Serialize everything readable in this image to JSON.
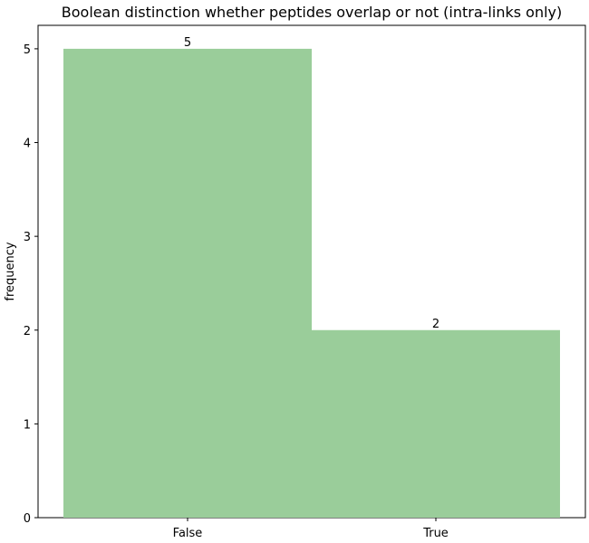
{
  "chart_data": {
    "type": "bar",
    "title": "Boolean distinction whether peptides overlap or not (intra-links only)",
    "xlabel": "",
    "ylabel": "frequency",
    "categories": [
      "False",
      "True"
    ],
    "values": [
      5,
      2
    ],
    "data_labels": [
      "5",
      "2"
    ],
    "ylim": [
      0,
      5.25
    ],
    "yticks": [
      0,
      1,
      2,
      3,
      4,
      5
    ],
    "grid": false,
    "legend": "none",
    "bar_color": "#9acd9a"
  }
}
